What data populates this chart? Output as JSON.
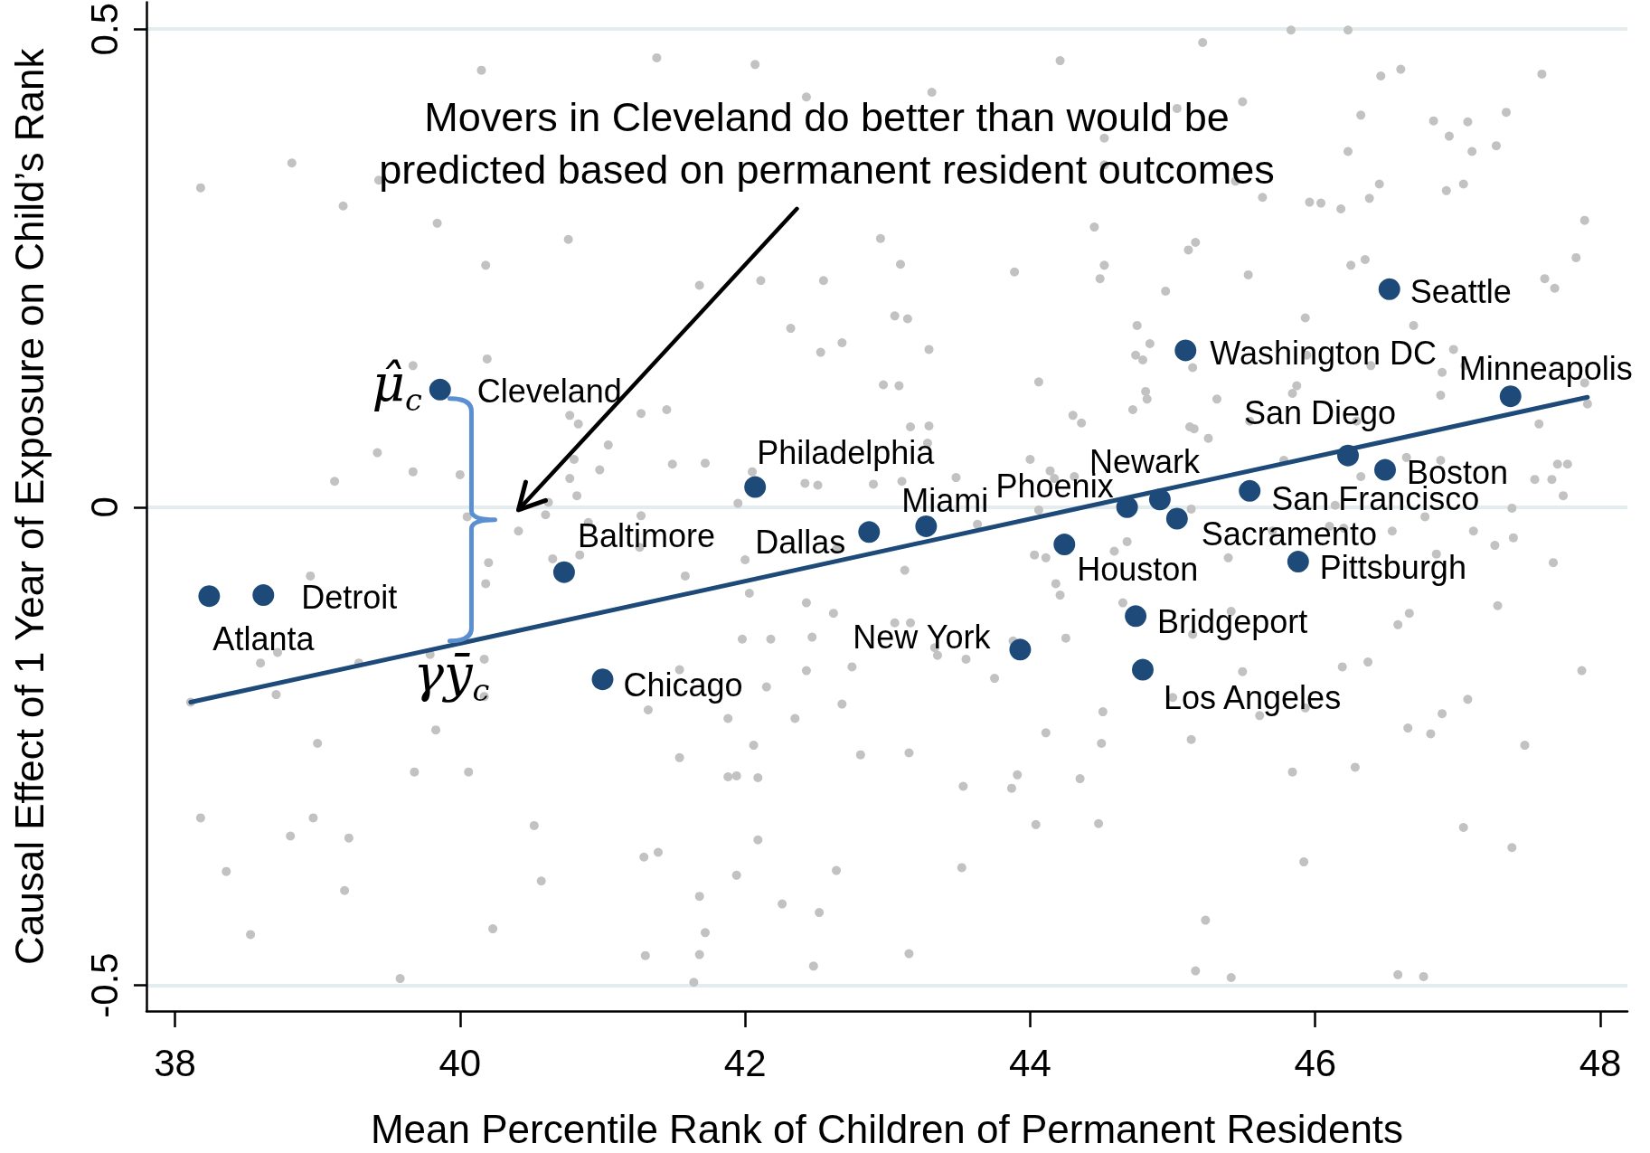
{
  "chart_data": {
    "type": "scatter",
    "xlabel": "Mean Percentile Rank of Children of Permanent Residents",
    "ylabel": "Causal Effect of 1 Year of Exposure on Child’s Rank",
    "xlim": [
      37.8,
      48.19
    ],
    "ylim": [
      -0.527,
      0.528
    ],
    "xticks": [
      38,
      40,
      42,
      44,
      46,
      48
    ],
    "yticks": [
      -0.5,
      0,
      0.5
    ],
    "grid": "y",
    "marker": "circle",
    "annotations": [
      "Movers in Cleveland do better than would be\npredicted based on permanent resident outcomes",
      {
        "text": "μ̂$_{c}$",
        "x": 39.86,
        "y": 0.123
      },
      {
        "text": "γȳ$_{c}$",
        "x": 40.08,
        "y": -0.14
      }
    ],
    "series": [
      {
        "color": "#c2c2c2",
        "x": [
          40.15,
          41.38,
          38.82,
          38.18,
          39.18,
          39.84,
          39.43,
          40.76,
          40.18,
          41.68,
          39.67,
          40.19,
          40.77,
          40.83,
          41.27,
          41.45,
          39.42,
          39.67,
          40,
          39.12,
          40.8,
          41.04,
          40.98,
          40.77,
          40.82,
          40.62,
          41.49,
          41.72,
          44.21,
          42.07,
          45.21,
          43.31,
          42.43,
          45.49,
          44.52,
          44.52,
          45.03,
          45.63,
          45.44,
          44.45,
          42.95,
          43.09,
          42.11,
          42.55,
          43.89,
          44.52,
          44.49,
          45.16,
          45.11,
          45.53,
          44.95,
          42.32,
          43.05,
          43.14,
          42.53,
          42.68,
          43.29,
          44.06,
          44.75,
          44.84,
          44.74,
          44.79,
          45.14,
          44.81,
          44.82,
          45.31,
          44.72,
          42.97,
          43.08,
          44.3,
          44.36,
          45.54,
          45.12,
          45.15,
          45.25,
          43.16,
          43.29,
          43.28,
          44,
          44.14,
          44.17,
          44.31,
          43.48,
          42.42,
          42.51,
          42.9,
          43.1,
          42.05,
          41.95,
          45.83,
          46.23,
          46.46,
          46.6,
          47.59,
          46.32,
          46.83,
          47.07,
          47.34,
          46.94,
          47.1,
          47.27,
          46.23,
          46.45,
          46.38,
          45.96,
          46.04,
          46.18,
          46.92,
          47.04,
          47.89,
          47.83,
          47.61,
          47.68,
          46.25,
          46.35,
          45.93,
          46.69,
          46.97,
          46.89,
          46.88,
          45.87,
          45.84,
          45.94,
          46.39,
          47.05,
          47.57,
          47.91,
          47.89,
          46.64,
          46.88,
          46.32,
          47.54,
          47.66,
          47.7,
          47.77,
          47.74,
          45.78,
          46.29,
          38.95,
          40.6,
          40.41,
          40.9,
          41.27,
          41.26,
          40.84,
          40.65,
          40.2,
          40.18,
          41.58,
          40.05,
          38.72,
          38.6,
          38.71,
          38.11,
          39.29,
          39.79,
          40.17,
          40.17,
          41.54,
          41.32,
          39.83,
          39,
          39.68,
          40.06,
          41.54,
          38.18,
          38.97,
          38.81,
          39.22,
          40.52,
          38.36,
          39.19,
          40.57,
          41.29,
          41.39,
          41.68,
          38.53,
          40.23,
          39.58,
          41.72,
          41.3,
          41.68,
          41.64,
          42,
          42.03,
          42.43,
          42.62,
          43.12,
          43.63,
          42.64,
          44.03,
          44.11,
          44.18,
          44.21,
          44.59,
          44.68,
          44.65,
          44.06,
          45.13,
          45.39,
          45.41,
          45.14,
          44.25,
          41.98,
          42.18,
          42.47,
          43.05,
          43.16,
          43.33,
          43.35,
          43.55,
          43.88,
          43.75,
          42.75,
          42.43,
          42.15,
          42.68,
          41.88,
          42.35,
          42.06,
          42.81,
          43.15,
          41.88,
          41.94,
          42.09,
          43.53,
          43.91,
          43.87,
          44.11,
          44.51,
          44.5,
          44.35,
          45.13,
          45.49,
          45.61,
          45,
          42.09,
          41.94,
          42.64,
          43.52,
          44.04,
          44.48,
          42.26,
          42.52,
          43.15,
          42.48,
          45.23,
          45.16,
          45.41,
          46.14,
          47.38,
          46.77,
          46.1,
          46.2,
          46.54,
          47.11,
          47.39,
          47.26,
          46.85,
          47.67,
          45.7,
          47.28,
          46.66,
          46.58,
          46.19,
          46.37,
          47.87,
          45.93,
          47.07,
          46.89,
          46.65,
          46.81,
          47.47,
          45.84,
          46.28,
          47.04,
          47.38,
          45.92,
          46.58,
          46.76
        ],
        "values": [
          0.457,
          0.47,
          0.36,
          0.334,
          0.315,
          0.297,
          0.342,
          0.28,
          0.253,
          0.232,
          0.148,
          0.155,
          0.096,
          0.087,
          0.098,
          0.102,
          0.057,
          0.037,
          0.034,
          0.027,
          0.05,
          0.065,
          0.039,
          0.03,
          0.012,
          0.005,
          0.045,
          0.046,
          0.467,
          0.463,
          0.486,
          0.434,
          0.429,
          0.424,
          0.386,
          0.358,
          0.417,
          0.324,
          0.341,
          0.293,
          0.281,
          0.254,
          0.237,
          0.237,
          0.246,
          0.253,
          0.239,
          0.277,
          0.269,
          0.243,
          0.226,
          0.187,
          0.2,
          0.197,
          0.162,
          0.172,
          0.165,
          0.131,
          0.19,
          0.171,
          0.159,
          0.154,
          0.146,
          0.121,
          0.113,
          0.113,
          0.102,
          0.128,
          0.127,
          0.096,
          0.088,
          0.09,
          0.084,
          0.082,
          0.072,
          0.084,
          0.085,
          0.067,
          0.05,
          0.038,
          0.03,
          0.032,
          0.031,
          0.025,
          0.023,
          0.024,
          0.027,
          0.037,
          0.004,
          0.499,
          0.499,
          0.451,
          0.458,
          0.453,
          0.41,
          0.404,
          0.403,
          0.413,
          0.388,
          0.372,
          0.378,
          0.372,
          0.338,
          0.323,
          0.319,
          0.318,
          0.312,
          0.331,
          0.338,
          0.3,
          0.261,
          0.239,
          0.229,
          0.253,
          0.259,
          0.198,
          0.19,
          0.165,
          0.141,
          0.117,
          0.127,
          0.119,
          0.159,
          0.148,
          0.148,
          0.087,
          0.108,
          0.13,
          0.052,
          0.049,
          0.032,
          0.029,
          0.029,
          0.045,
          0.045,
          0.012,
          0.049,
          0.09,
          -0.072,
          -0.008,
          -0.025,
          -0.016,
          -0.009,
          -0.042,
          -0.05,
          -0.054,
          -0.058,
          -0.08,
          -0.072,
          -0.01,
          -0.152,
          -0.163,
          -0.196,
          -0.204,
          -0.163,
          -0.154,
          -0.159,
          -0.198,
          -0.17,
          -0.212,
          -0.233,
          -0.247,
          -0.277,
          -0.277,
          -0.262,
          -0.325,
          -0.325,
          -0.344,
          -0.346,
          -0.333,
          -0.381,
          -0.401,
          -0.391,
          -0.366,
          -0.361,
          -0.407,
          -0.447,
          -0.441,
          -0.493,
          -0.445,
          -0.469,
          -0.468,
          -0.497,
          -0.055,
          -0.09,
          -0.1,
          -0.111,
          -0.066,
          -0.018,
          -0.044,
          -0.05,
          -0.053,
          -0.08,
          -0.092,
          -0.046,
          -0.036,
          -0.1,
          -0.003,
          -0.002,
          -0.053,
          -0.109,
          -0.133,
          -0.137,
          -0.138,
          -0.138,
          -0.136,
          -0.121,
          -0.121,
          -0.147,
          -0.155,
          -0.159,
          -0.14,
          -0.179,
          -0.167,
          -0.171,
          -0.188,
          -0.206,
          -0.221,
          -0.221,
          -0.249,
          -0.259,
          -0.257,
          -0.282,
          -0.281,
          -0.283,
          -0.292,
          -0.28,
          -0.294,
          -0.236,
          -0.214,
          -0.247,
          -0.284,
          -0.243,
          -0.172,
          -0.218,
          -0.199,
          -0.348,
          -0.385,
          -0.38,
          -0.377,
          -0.332,
          -0.331,
          -0.415,
          -0.424,
          -0.467,
          -0.48,
          -0.432,
          -0.485,
          -0.492,
          0.002,
          -0.001,
          -0.01,
          -0.02,
          -0.022,
          -0.025,
          -0.025,
          -0.032,
          -0.04,
          -0.049,
          -0.058,
          -0.025,
          -0.103,
          -0.111,
          -0.123,
          -0.167,
          -0.162,
          -0.171,
          -0.21,
          -0.201,
          -0.216,
          -0.231,
          -0.237,
          -0.249,
          -0.277,
          -0.272,
          -0.335,
          -0.356,
          -0.371,
          -0.489,
          -0.491
        ]
      },
      {
        "type": "line",
        "color": "#1d4a78",
        "marker": "none",
        "line_style": "solid",
        "x": [
          38.11,
          47.91
        ],
        "values": [
          -0.204,
          0.115
        ]
      },
      {
        "color": "#1d4a78",
        "x": [
          38.24,
          38.62,
          39.86,
          40.73,
          41,
          42.07,
          42.87,
          43.27,
          43.93,
          44.24,
          44.68,
          44.74,
          44.79,
          44.91,
          45.03,
          45.09,
          45.54,
          45.88,
          46.23,
          46.49,
          46.52,
          47.37
        ],
        "values": [
          -0.093,
          -0.092,
          0.123,
          -0.068,
          -0.18,
          0.021,
          -0.026,
          -0.02,
          -0.149,
          -0.039,
          0,
          -0.114,
          -0.17,
          0.008,
          -0.012,
          0.164,
          0.017,
          -0.057,
          0.054,
          0.039,
          0.228,
          0.116
        ],
        "value_labels": [
          "Atlanta",
          "Detroit",
          "Cleveland",
          "Baltimore",
          "Chicago",
          "Philadelphia",
          "Dallas",
          "Miami",
          "New York",
          "Houston",
          "Phoenix",
          "Bridgeport",
          "Los Angeles",
          "Newark",
          "Sacramento",
          "Washington DC",
          "San Francisco",
          "Pittsburgh",
          "San Diego",
          "Boston",
          "Seattle",
          "Minneapolis"
        ]
      }
    ]
  }
}
